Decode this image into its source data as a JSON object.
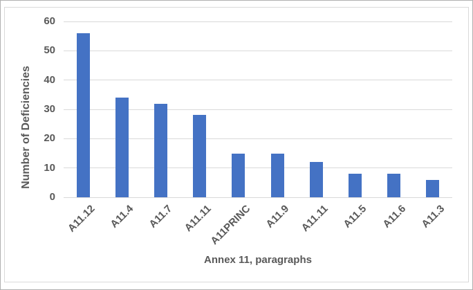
{
  "chart_data": {
    "type": "bar",
    "categories": [
      "A11.12",
      "A11.4",
      "A11.7",
      "A11.11",
      "A11PRINC",
      "A11.9",
      "A11.11",
      "A11.5",
      "A11.6",
      "A11.3"
    ],
    "values": [
      56,
      34,
      32,
      28,
      15,
      15,
      12,
      8,
      8,
      6
    ],
    "title": "",
    "xlabel": "Annex 11, paragraphs",
    "ylabel": "Number of Deficiencies",
    "ylim": [
      0,
      60
    ],
    "yticks": [
      0,
      10,
      20,
      30,
      40,
      50,
      60
    ],
    "grid": true,
    "legend": false,
    "x_tick_rotation_deg": -45,
    "colors": {
      "bar": "#4472C4",
      "gridline": "#D9D9D9",
      "text": "#595959",
      "chart_border": "#D9D9D9",
      "outer_border": "#B0B0B0"
    }
  }
}
